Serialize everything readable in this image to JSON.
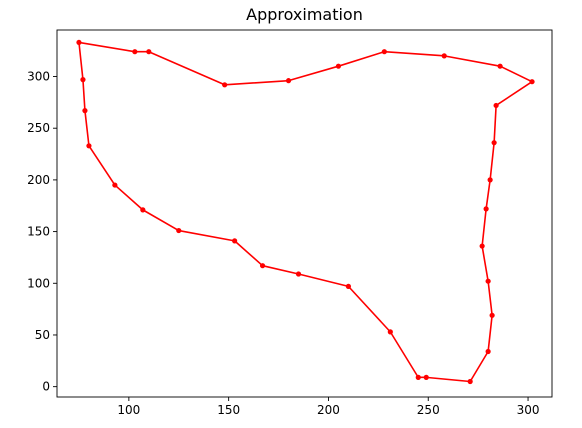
{
  "chart_data": {
    "type": "line",
    "title": "Approximation",
    "xlabel": "",
    "ylabel": "",
    "xlim": [
      64,
      312
    ],
    "ylim": [
      -10,
      345
    ],
    "xticks": [
      100,
      150,
      200,
      250,
      300
    ],
    "yticks": [
      0,
      50,
      100,
      150,
      200,
      250,
      300
    ],
    "grid": false,
    "color": "#ff0000",
    "series": [
      {
        "points": [
          [
            75,
            333
          ],
          [
            103,
            324
          ],
          [
            110,
            324
          ],
          [
            148,
            292
          ],
          [
            180,
            296
          ],
          [
            205,
            310
          ],
          [
            228,
            324
          ],
          [
            258,
            320
          ],
          [
            286,
            310
          ],
          [
            302,
            295
          ],
          [
            284,
            272
          ],
          [
            283,
            236
          ],
          [
            281,
            200
          ],
          [
            279,
            172
          ],
          [
            277,
            136
          ],
          [
            280,
            102
          ],
          [
            282,
            69
          ],
          [
            280,
            34
          ],
          [
            271,
            5
          ],
          [
            249,
            9
          ],
          [
            245,
            9
          ],
          [
            231,
            53
          ],
          [
            210,
            97
          ],
          [
            185,
            109
          ],
          [
            167,
            117
          ],
          [
            153,
            141
          ],
          [
            125,
            151
          ],
          [
            107,
            171
          ],
          [
            93,
            195
          ],
          [
            80,
            233
          ],
          [
            78,
            267
          ],
          [
            77,
            297
          ],
          [
            75,
            333
          ]
        ]
      }
    ]
  }
}
